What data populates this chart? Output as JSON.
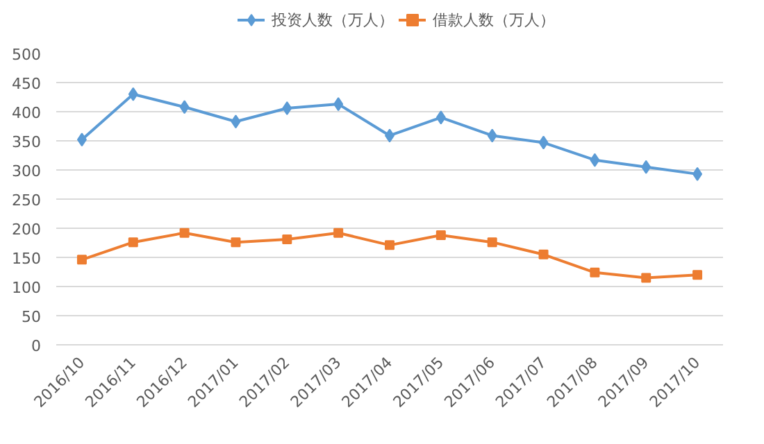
{
  "chart_data": {
    "type": "line",
    "categories": [
      "2016/10",
      "2016/11",
      "2016/12",
      "2017/01",
      "2017/02",
      "2017/03",
      "2017/04",
      "2017/05",
      "2017/06",
      "2017/07",
      "2017/08",
      "2017/09",
      "2017/10"
    ],
    "series": [
      {
        "name": "投资人数（万人）",
        "color": "#5b9bd5",
        "marker": "diamond",
        "values": [
          352,
          430,
          408,
          383,
          406,
          413,
          359,
          390,
          359,
          347,
          317,
          305,
          293
        ]
      },
      {
        "name": "借款人数（万人）",
        "color": "#ed7d31",
        "marker": "square",
        "values": [
          146,
          176,
          192,
          176,
          181,
          192,
          171,
          188,
          176,
          155,
          124,
          115,
          120
        ]
      }
    ],
    "ylim": [
      0,
      500
    ],
    "yticks": [
      0,
      50,
      100,
      150,
      200,
      250,
      300,
      350,
      400,
      450,
      500
    ],
    "grid": "y",
    "legend": "top",
    "line_style": "solid"
  }
}
